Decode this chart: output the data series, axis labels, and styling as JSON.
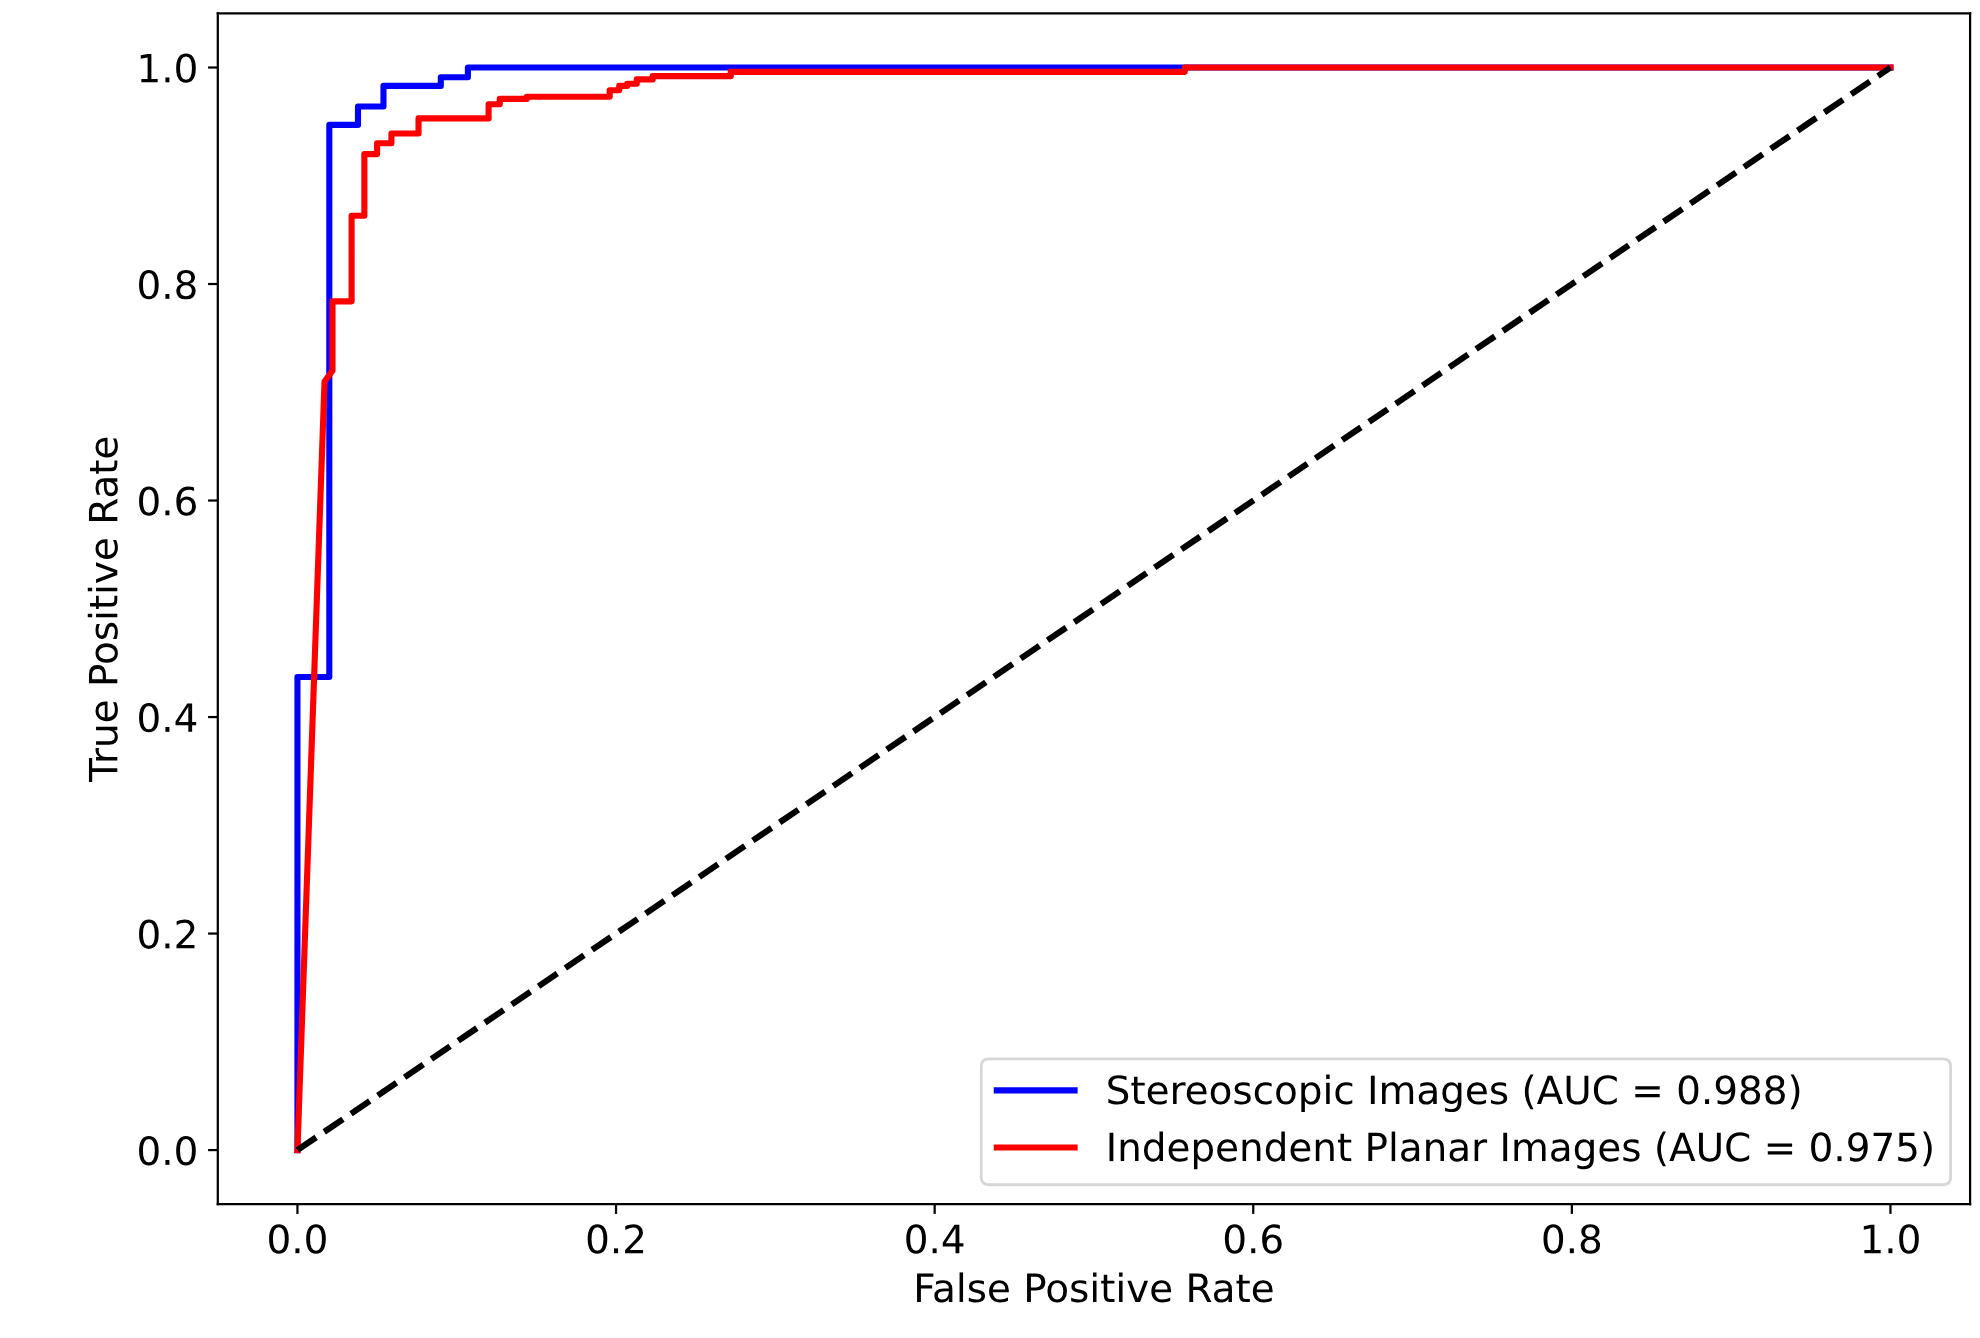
{
  "chart_data": {
    "type": "line",
    "xlabel": "False Positive Rate",
    "ylabel": "True Positive Rate",
    "xlim": [
      -0.05,
      1.05
    ],
    "ylim": [
      -0.05,
      1.05
    ],
    "xticks": [
      {
        "value": 0,
        "label": "0.0"
      },
      0.2,
      0.4,
      0.6,
      0.8,
      {
        "value": 1,
        "label": "1.0"
      }
    ],
    "yticks": [
      {
        "value": 0,
        "label": "0.0"
      },
      0.2,
      0.4,
      0.6,
      0.8,
      {
        "value": 1,
        "label": "1.0"
      }
    ],
    "legend": "lower right",
    "grid": false,
    "marker": "none",
    "series": [
      {
        "name": "Stereoscopic Images (AUC = 0.988)",
        "color": "#0000ff",
        "line_style": "solid",
        "x": [
          0,
          0,
          0.02,
          0.02,
          0.038,
          0.038,
          0.054,
          0.054,
          0.09,
          0.09,
          0.107,
          0.107,
          1.0
        ],
        "values": [
          0,
          0.437,
          0.437,
          0.947,
          0.947,
          0.964,
          0.964,
          0.983,
          0.983,
          0.991,
          0.991,
          1.0,
          1.0
        ]
      },
      {
        "name": "Independent Planar Images (AUC = 0.975)",
        "color": "#ff0000",
        "line_style": "solid",
        "x": [
          0,
          0.017,
          0.022,
          0.022,
          0.034,
          0.034,
          0.042,
          0.042,
          0.05,
          0.05,
          0.059,
          0.059,
          0.076,
          0.076,
          0.12,
          0.12,
          0.127,
          0.127,
          0.144,
          0.144,
          0.196,
          0.196,
          0.202,
          0.202,
          0.207,
          0.207,
          0.213,
          0.213,
          0.223,
          0.223,
          0.272,
          0.272,
          0.557,
          0.557,
          1.0
        ],
        "values": [
          0,
          0.71,
          0.72,
          0.784,
          0.784,
          0.863,
          0.863,
          0.92,
          0.92,
          0.93,
          0.93,
          0.939,
          0.939,
          0.953,
          0.953,
          0.966,
          0.966,
          0.971,
          0.971,
          0.973,
          0.973,
          0.979,
          0.979,
          0.983,
          0.983,
          0.985,
          0.985,
          0.989,
          0.989,
          0.992,
          0.992,
          0.996,
          0.996,
          1.0,
          1.0
        ]
      },
      {
        "color": "#000000",
        "line_style": "dashed",
        "x": [
          0,
          1
        ],
        "values": [
          0,
          1
        ]
      }
    ]
  }
}
